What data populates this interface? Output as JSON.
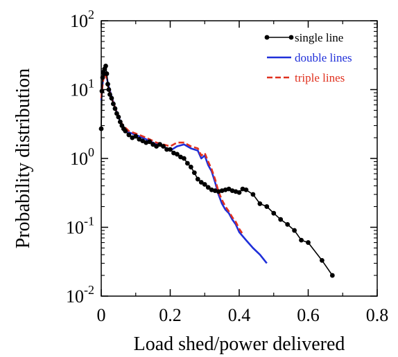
{
  "chart_data": {
    "type": "line",
    "title": "",
    "xlabel": "Load shed/power delivered",
    "ylabel": "Probability distribution",
    "xlim": [
      0,
      0.8
    ],
    "ylim": [
      0.01,
      100
    ],
    "yscale": "log",
    "x_ticks": [
      "0",
      "0.2",
      "0.4",
      "0.6",
      "0.8"
    ],
    "y_ticks": [
      {
        "base": "10",
        "exp": "-2"
      },
      {
        "base": "10",
        "exp": "-1"
      },
      {
        "base": "10",
        "exp": "0"
      },
      {
        "base": "10",
        "exp": "1"
      },
      {
        "base": "10",
        "exp": "2"
      }
    ],
    "legend_position": "top-right",
    "series": [
      {
        "name": "single line",
        "color": "#000000",
        "style": "solid-markers",
        "x": [
          0.0,
          0.002,
          0.004,
          0.006,
          0.008,
          0.01,
          0.013,
          0.016,
          0.019,
          0.022,
          0.025,
          0.03,
          0.035,
          0.04,
          0.045,
          0.05,
          0.055,
          0.06,
          0.065,
          0.07,
          0.08,
          0.09,
          0.1,
          0.11,
          0.12,
          0.13,
          0.14,
          0.15,
          0.16,
          0.17,
          0.18,
          0.19,
          0.2,
          0.21,
          0.22,
          0.23,
          0.24,
          0.25,
          0.26,
          0.27,
          0.28,
          0.29,
          0.3,
          0.31,
          0.32,
          0.33,
          0.34,
          0.35,
          0.36,
          0.37,
          0.38,
          0.39,
          0.4,
          0.41,
          0.42,
          0.44,
          0.46,
          0.48,
          0.5,
          0.52,
          0.54,
          0.56,
          0.58,
          0.6,
          0.64,
          0.67
        ],
        "y": [
          2.7,
          9.5,
          15,
          18,
          17,
          20,
          22,
          17,
          12,
          10,
          8.5,
          7.5,
          6.2,
          5.3,
          4.5,
          4.0,
          3.4,
          3.0,
          2.7,
          2.5,
          2.2,
          2.0,
          2.1,
          1.9,
          1.8,
          1.7,
          1.75,
          1.6,
          1.5,
          1.6,
          1.5,
          1.35,
          1.35,
          1.2,
          1.15,
          1.05,
          1.0,
          0.85,
          0.75,
          0.62,
          0.5,
          0.45,
          0.42,
          0.38,
          0.35,
          0.34,
          0.33,
          0.34,
          0.35,
          0.36,
          0.34,
          0.33,
          0.32,
          0.36,
          0.35,
          0.3,
          0.22,
          0.2,
          0.16,
          0.13,
          0.11,
          0.09,
          0.065,
          0.06,
          0.033,
          0.02
        ]
      },
      {
        "name": "double lines",
        "color": "#1f2fd9",
        "style": "solid",
        "x": [
          0.0,
          0.005,
          0.01,
          0.015,
          0.02,
          0.03,
          0.04,
          0.05,
          0.06,
          0.07,
          0.08,
          0.1,
          0.12,
          0.14,
          0.16,
          0.18,
          0.2,
          0.22,
          0.24,
          0.26,
          0.28,
          0.29,
          0.3,
          0.31,
          0.32,
          0.33,
          0.34,
          0.35,
          0.36,
          0.37,
          0.38,
          0.39,
          0.4,
          0.42,
          0.44,
          0.46,
          0.48
        ],
        "y": [
          7.0,
          14,
          18,
          16,
          12,
          8.0,
          5.5,
          4.0,
          3.0,
          2.6,
          2.4,
          2.2,
          2.0,
          1.8,
          1.6,
          1.5,
          1.3,
          1.5,
          1.6,
          1.4,
          1.3,
          1.0,
          1.1,
          0.8,
          0.65,
          0.45,
          0.3,
          0.22,
          0.18,
          0.16,
          0.13,
          0.11,
          0.085,
          0.065,
          0.05,
          0.04,
          0.03
        ]
      },
      {
        "name": "triple lines",
        "color": "#e0301e",
        "style": "dashed",
        "x": [
          0.0,
          0.005,
          0.01,
          0.015,
          0.02,
          0.03,
          0.04,
          0.05,
          0.06,
          0.07,
          0.08,
          0.1,
          0.12,
          0.14,
          0.16,
          0.18,
          0.2,
          0.22,
          0.24,
          0.26,
          0.28,
          0.29,
          0.3,
          0.31,
          0.32,
          0.33,
          0.34,
          0.35,
          0.36,
          0.37,
          0.38,
          0.39,
          0.4,
          0.41
        ],
        "y": [
          7.5,
          13,
          17,
          15,
          11,
          7.5,
          5.5,
          4.2,
          3.2,
          2.8,
          2.5,
          2.3,
          2.1,
          1.9,
          1.7,
          1.6,
          1.5,
          1.7,
          1.7,
          1.5,
          1.4,
          1.1,
          1.2,
          0.9,
          0.7,
          0.5,
          0.33,
          0.25,
          0.2,
          0.17,
          0.14,
          0.12,
          0.095,
          0.08
        ]
      }
    ]
  }
}
